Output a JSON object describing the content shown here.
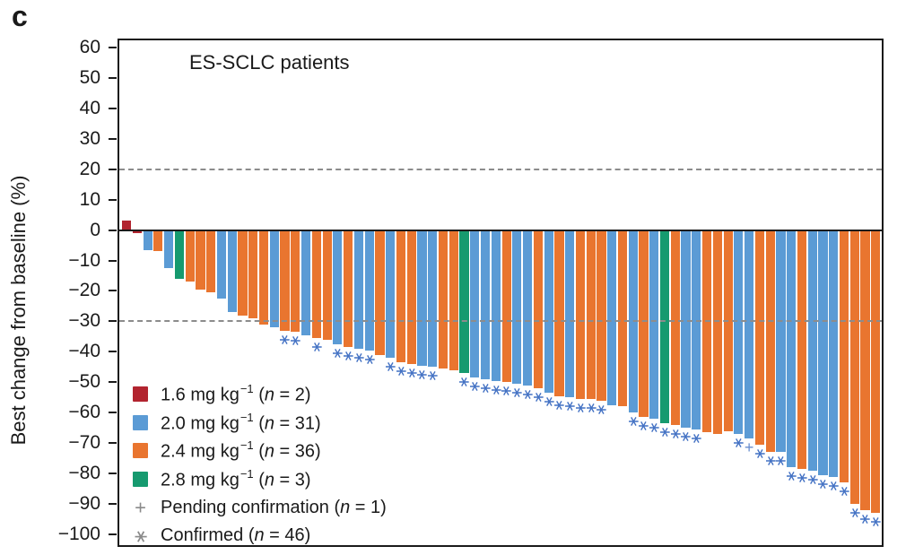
{
  "panel_label": "c",
  "title": "ES-SCLC patients",
  "y_axis": {
    "label": "Best change from baseline (%)",
    "ticks": [
      60,
      50,
      40,
      30,
      20,
      10,
      0,
      -10,
      -20,
      -30,
      -40,
      -50,
      -60,
      -70,
      -80,
      -90,
      -100
    ]
  },
  "legend": [
    {
      "kind": "dose",
      "dose": "1.6",
      "swatch_color": "#b2242f",
      "label": "1.6 mg kg",
      "superscript": "−1",
      "n_label": "n",
      "n_value": "2"
    },
    {
      "kind": "dose",
      "dose": "2.0",
      "swatch_color": "#5b9bd5",
      "label": "2.0 mg kg",
      "superscript": "−1",
      "n_label": "n",
      "n_value": "31"
    },
    {
      "kind": "dose",
      "dose": "2.4",
      "swatch_color": "#e9752f",
      "label": "2.4 mg kg",
      "superscript": "−1",
      "n_label": "n",
      "n_value": "36"
    },
    {
      "kind": "dose",
      "dose": "2.8",
      "swatch_color": "#169a6f",
      "label": "2.8 mg kg",
      "superscript": "−1",
      "n_label": "n",
      "n_value": "3"
    },
    {
      "kind": "marker",
      "icon": "plus-icon",
      "label": "Pending confirmation",
      "n_label": "n",
      "n_value": "1"
    },
    {
      "kind": "marker",
      "icon": "asterisk-icon",
      "label": "Confirmed",
      "n_label": "n",
      "n_value": "46"
    }
  ],
  "chart_data": {
    "type": "bar",
    "subtype": "waterfall",
    "title": "ES-SCLC patients",
    "xlabel": "",
    "ylabel": "Best change from baseline (%)",
    "ylim": [
      -100,
      60
    ],
    "grid": false,
    "legend_position": "lower-left-inside",
    "reference_lines": [
      20,
      -30
    ],
    "reference_line_style": "dashed-gray",
    "dose_colors": {
      "1.6": "#b2242f",
      "2.0": "#5b9bd5",
      "2.4": "#e9752f",
      "2.8": "#169a6f"
    },
    "marker_color": "#4472c4",
    "marker_legend": {
      "c": "Confirmed",
      "p": "Pending confirmation"
    },
    "bars": [
      {
        "dose": "1.6",
        "value": 3,
        "marker": ""
      },
      {
        "dose": "1.6",
        "value": -1,
        "marker": ""
      },
      {
        "dose": "2.0",
        "value": -6.5,
        "marker": ""
      },
      {
        "dose": "2.4",
        "value": -7,
        "marker": ""
      },
      {
        "dose": "2.0",
        "value": -12.5,
        "marker": ""
      },
      {
        "dose": "2.8",
        "value": -16,
        "marker": ""
      },
      {
        "dose": "2.4",
        "value": -17,
        "marker": ""
      },
      {
        "dose": "2.4",
        "value": -19.5,
        "marker": ""
      },
      {
        "dose": "2.4",
        "value": -20.5,
        "marker": ""
      },
      {
        "dose": "2.0",
        "value": -22.5,
        "marker": ""
      },
      {
        "dose": "2.0",
        "value": -27,
        "marker": ""
      },
      {
        "dose": "2.4",
        "value": -28,
        "marker": ""
      },
      {
        "dose": "2.4",
        "value": -29,
        "marker": ""
      },
      {
        "dose": "2.4",
        "value": -31,
        "marker": ""
      },
      {
        "dose": "2.0",
        "value": -32,
        "marker": ""
      },
      {
        "dose": "2.4",
        "value": -33,
        "marker": "c"
      },
      {
        "dose": "2.4",
        "value": -33.5,
        "marker": "c"
      },
      {
        "dose": "2.0",
        "value": -34.5,
        "marker": ""
      },
      {
        "dose": "2.4",
        "value": -35.5,
        "marker": "c"
      },
      {
        "dose": "2.4",
        "value": -36,
        "marker": ""
      },
      {
        "dose": "2.0",
        "value": -37.5,
        "marker": "c"
      },
      {
        "dose": "2.4",
        "value": -38.5,
        "marker": "c"
      },
      {
        "dose": "2.0",
        "value": -39,
        "marker": "c"
      },
      {
        "dose": "2.0",
        "value": -39.5,
        "marker": "c"
      },
      {
        "dose": "2.4",
        "value": -41,
        "marker": ""
      },
      {
        "dose": "2.0",
        "value": -42,
        "marker": "c"
      },
      {
        "dose": "2.4",
        "value": -43.5,
        "marker": "c"
      },
      {
        "dose": "2.4",
        "value": -44,
        "marker": "c"
      },
      {
        "dose": "2.0",
        "value": -44.5,
        "marker": "c"
      },
      {
        "dose": "2.0",
        "value": -45,
        "marker": "c"
      },
      {
        "dose": "2.4",
        "value": -45.5,
        "marker": ""
      },
      {
        "dose": "2.4",
        "value": -46,
        "marker": ""
      },
      {
        "dose": "2.8",
        "value": -47,
        "marker": "c"
      },
      {
        "dose": "2.0",
        "value": -48.5,
        "marker": "c"
      },
      {
        "dose": "2.0",
        "value": -49,
        "marker": "c"
      },
      {
        "dose": "2.0",
        "value": -49.5,
        "marker": "c"
      },
      {
        "dose": "2.4",
        "value": -50,
        "marker": "c"
      },
      {
        "dose": "2.0",
        "value": -50.5,
        "marker": "c"
      },
      {
        "dose": "2.0",
        "value": -51,
        "marker": "c"
      },
      {
        "dose": "2.4",
        "value": -52,
        "marker": "c"
      },
      {
        "dose": "2.0",
        "value": -53.5,
        "marker": "c"
      },
      {
        "dose": "2.4",
        "value": -54.5,
        "marker": "c"
      },
      {
        "dose": "2.0",
        "value": -55,
        "marker": "c"
      },
      {
        "dose": "2.4",
        "value": -55.5,
        "marker": "c"
      },
      {
        "dose": "2.4",
        "value": -55.5,
        "marker": "c"
      },
      {
        "dose": "2.4",
        "value": -56,
        "marker": "c"
      },
      {
        "dose": "2.0",
        "value": -57.5,
        "marker": ""
      },
      {
        "dose": "2.4",
        "value": -58,
        "marker": ""
      },
      {
        "dose": "2.0",
        "value": -60,
        "marker": "c"
      },
      {
        "dose": "2.4",
        "value": -61.5,
        "marker": "c"
      },
      {
        "dose": "2.0",
        "value": -62,
        "marker": "c"
      },
      {
        "dose": "2.8",
        "value": -63.5,
        "marker": "c"
      },
      {
        "dose": "2.4",
        "value": -64,
        "marker": "c"
      },
      {
        "dose": "2.0",
        "value": -65,
        "marker": "c"
      },
      {
        "dose": "2.0",
        "value": -65.5,
        "marker": "c"
      },
      {
        "dose": "2.4",
        "value": -66.5,
        "marker": ""
      },
      {
        "dose": "2.4",
        "value": -67,
        "marker": ""
      },
      {
        "dose": "2.4",
        "value": -66,
        "marker": ""
      },
      {
        "dose": "2.0",
        "value": -67,
        "marker": "c"
      },
      {
        "dose": "2.0",
        "value": -68.5,
        "marker": "p"
      },
      {
        "dose": "2.4",
        "value": -70.5,
        "marker": "c"
      },
      {
        "dose": "2.4",
        "value": -73,
        "marker": "c"
      },
      {
        "dose": "2.0",
        "value": -73,
        "marker": "c"
      },
      {
        "dose": "2.0",
        "value": -78,
        "marker": "c"
      },
      {
        "dose": "2.4",
        "value": -78.5,
        "marker": "c"
      },
      {
        "dose": "2.0",
        "value": -79,
        "marker": "c"
      },
      {
        "dose": "2.0",
        "value": -80.5,
        "marker": "c"
      },
      {
        "dose": "2.0",
        "value": -81,
        "marker": "c"
      },
      {
        "dose": "2.4",
        "value": -83,
        "marker": "c"
      },
      {
        "dose": "2.4",
        "value": -90,
        "marker": "c"
      },
      {
        "dose": "2.4",
        "value": -92,
        "marker": "c"
      },
      {
        "dose": "2.4",
        "value": -93,
        "marker": "c"
      }
    ]
  }
}
